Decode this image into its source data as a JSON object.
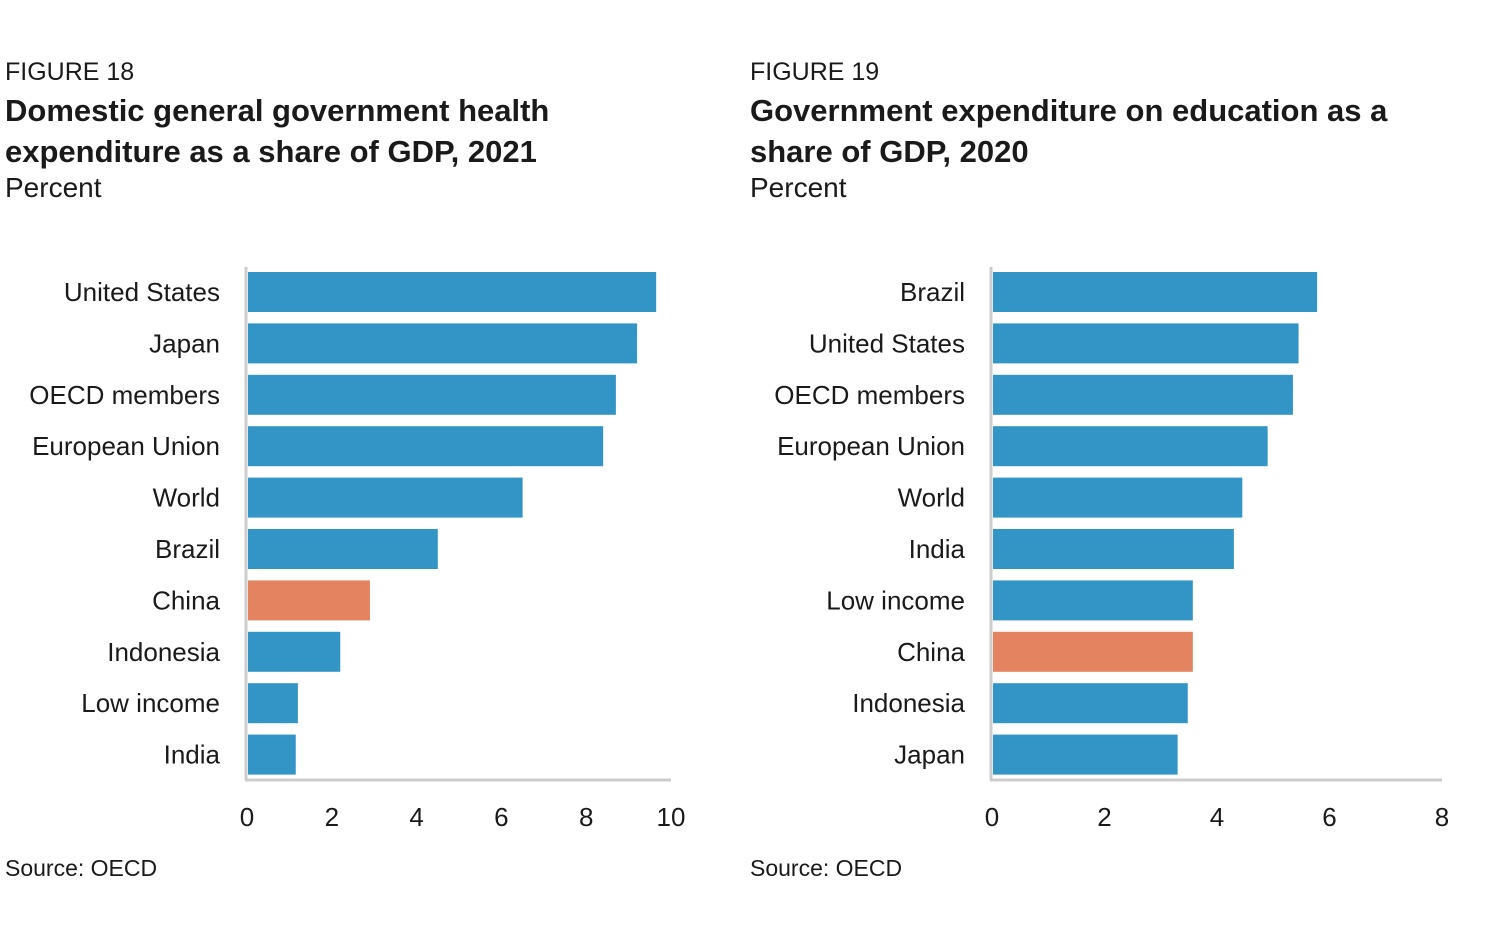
{
  "figures": [
    {
      "label": "FIGURE 18",
      "title": "Domestic general government health expenditure as a share of GDP, 2021",
      "units": "Percent",
      "source": "Source: OECD"
    },
    {
      "label": "FIGURE 19",
      "title": "Government expenditure on education as a share of GDP, 2020",
      "units": "Percent",
      "source": "Source: OECD"
    }
  ],
  "colors": {
    "bar": "#3394c6",
    "highlight": "#e4835f",
    "axis": "#cccccc"
  },
  "chart_data": [
    {
      "type": "bar",
      "orientation": "horizontal",
      "title": "Domestic general government health expenditure as a share of GDP, 2021",
      "xlabel": "",
      "ylabel": "",
      "categories": [
        "United States",
        "Japan",
        "OECD members",
        "European Union",
        "World",
        "Brazil",
        "China",
        "Indonesia",
        "Low income",
        "India"
      ],
      "values": [
        9.65,
        9.2,
        8.7,
        8.4,
        6.5,
        4.5,
        2.9,
        2.2,
        1.2,
        1.15
      ],
      "highlight": "China",
      "xlim": [
        0,
        10
      ],
      "xticks": [
        "0",
        "2",
        "4",
        "6",
        "8",
        "10"
      ]
    },
    {
      "type": "bar",
      "orientation": "horizontal",
      "title": "Government expenditure on education as a share of GDP, 2020",
      "xlabel": "",
      "ylabel": "",
      "categories": [
        "Brazil",
        "United States",
        "OECD members",
        "European Union",
        "World",
        "India",
        "Low income",
        "China",
        "Indonesia",
        "Japan"
      ],
      "values": [
        5.78,
        5.45,
        5.35,
        4.9,
        4.45,
        4.3,
        3.57,
        3.57,
        3.48,
        3.3
      ],
      "highlight": "China",
      "xlim": [
        0,
        8
      ],
      "xticks": [
        "0",
        "2",
        "4",
        "6",
        "8"
      ]
    }
  ]
}
